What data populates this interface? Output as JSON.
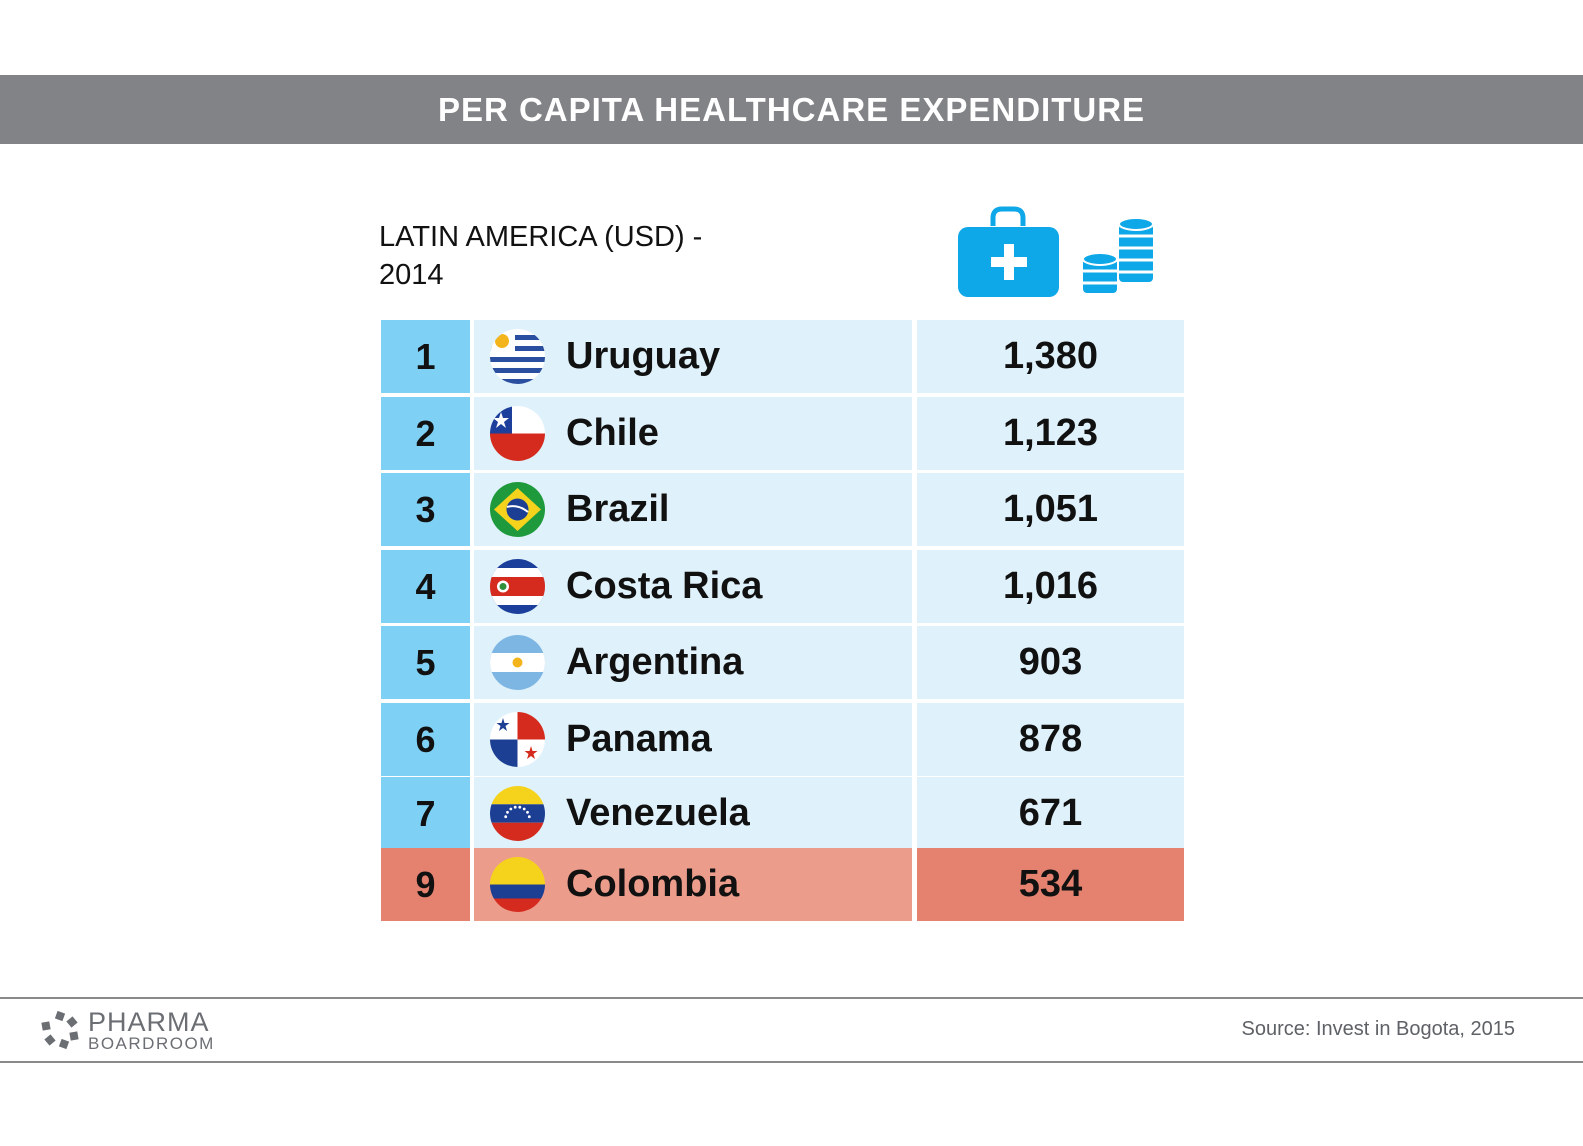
{
  "header": {
    "title": "PER CAPITA HEALTHCARE EXPENDITURE"
  },
  "subtitle": {
    "line1": "LATIN AMERICA (USD) -",
    "line2": "2014"
  },
  "icons": [
    "medical-kit-icon",
    "coins-icon"
  ],
  "colors": {
    "banner": "#828386",
    "rank_cell": "#7fd0f5",
    "row_cell": "#dff1fa",
    "highlight_rank": "#e5826f",
    "highlight_country": "#ec9c8b",
    "highlight_value": "#e5826f",
    "icon_blue": "#0ea7e8"
  },
  "chart_data": {
    "type": "table",
    "title": "PER CAPITA HEALTHCARE EXPENDITURE",
    "subtitle": "LATIN AMERICA (USD) - 2014",
    "rows": [
      {
        "rank": "1",
        "country": "Uruguay",
        "value": "1,380",
        "flag": "uruguay-flag-icon",
        "highlight": false
      },
      {
        "rank": "2",
        "country": "Chile",
        "value": "1,123",
        "flag": "chile-flag-icon",
        "highlight": false
      },
      {
        "rank": "3",
        "country": "Brazil",
        "value": "1,051",
        "flag": "brazil-flag-icon",
        "highlight": false
      },
      {
        "rank": "4",
        "country": "Costa Rica",
        "value": "1,016",
        "flag": "costa-rica-flag-icon",
        "highlight": false
      },
      {
        "rank": "5",
        "country": "Argentina",
        "value": "903",
        "flag": "argentina-flag-icon",
        "highlight": false
      },
      {
        "rank": "6",
        "country": "Panama",
        "value": "878",
        "flag": "panama-flag-icon",
        "highlight": false
      },
      {
        "rank": "7",
        "country": "Venezuela",
        "value": "671",
        "flag": "venezuela-flag-icon",
        "highlight": false
      },
      {
        "rank": "9",
        "country": "Colombia",
        "value": "534",
        "flag": "colombia-flag-icon",
        "highlight": true
      }
    ]
  },
  "footer": {
    "logo_line1": "PHARMA",
    "logo_line2": "BOARDROOM",
    "source": "Source: Invest in Bogota, 2015"
  }
}
